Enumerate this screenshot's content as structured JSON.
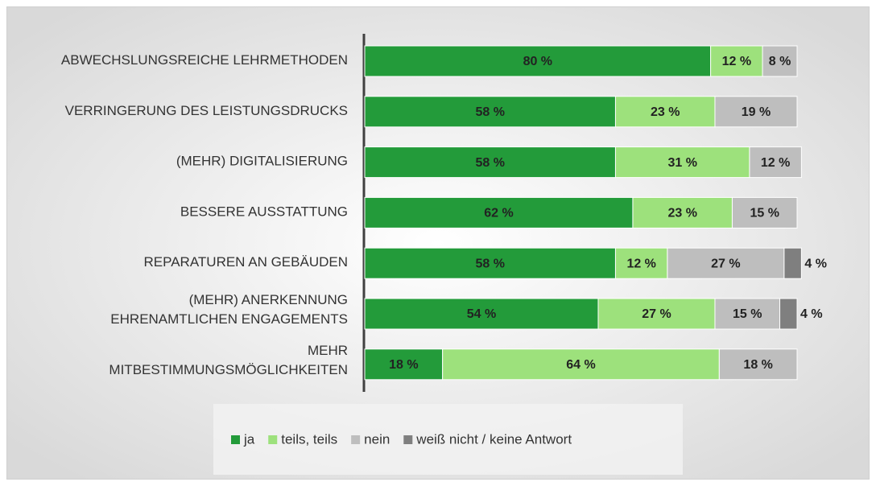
{
  "chart_data": {
    "type": "stacked-bar-horizontal",
    "categories": [
      "ABWECHSLUNGSREICHE LEHRMETHODEN",
      "VERRINGERUNG DES LEISTUNGSDRUCKS",
      "(MEHR) DIGITALISIERUNG",
      "BESSERE AUSSTATTUNG",
      "REPARATUREN AN GEBÄUDEN",
      "(MEHR) ANERKENNUNG\nEHRENAMTLICHEN ENGAGEMENTS",
      "MEHR\nMITBESTIMMUNGSMÖGLICHKEITEN"
    ],
    "series": [
      {
        "name": "ja",
        "color": "#239b3a",
        "values": [
          80,
          58,
          58,
          62,
          58,
          54,
          18
        ],
        "value_labels": [
          "80 %",
          "58 %",
          "58 %",
          "62 %",
          "58 %",
          "54 %",
          "18 %"
        ]
      },
      {
        "name": "teils, teils",
        "color": "#9de17c",
        "values": [
          12,
          23,
          31,
          23,
          12,
          27,
          64
        ],
        "value_labels": [
          "12 %",
          "23 %",
          "31 %",
          "23 %",
          "12 %",
          "27 %",
          "64 %"
        ]
      },
      {
        "name": "nein",
        "color": "#bebebe",
        "values": [
          8,
          19,
          12,
          15,
          27,
          15,
          18
        ],
        "value_labels": [
          "8 %",
          "19 %",
          "12 %",
          "15 %",
          "27 %",
          "15 %",
          "18 %"
        ]
      },
      {
        "name": "weiß nicht / keine Antwort",
        "color": "#7f7f7f",
        "values": [
          null,
          null,
          null,
          null,
          4,
          4,
          null
        ],
        "value_labels": [
          null,
          null,
          null,
          null,
          "4 %",
          "4 %",
          null
        ]
      }
    ],
    "legend": "bottom"
  }
}
